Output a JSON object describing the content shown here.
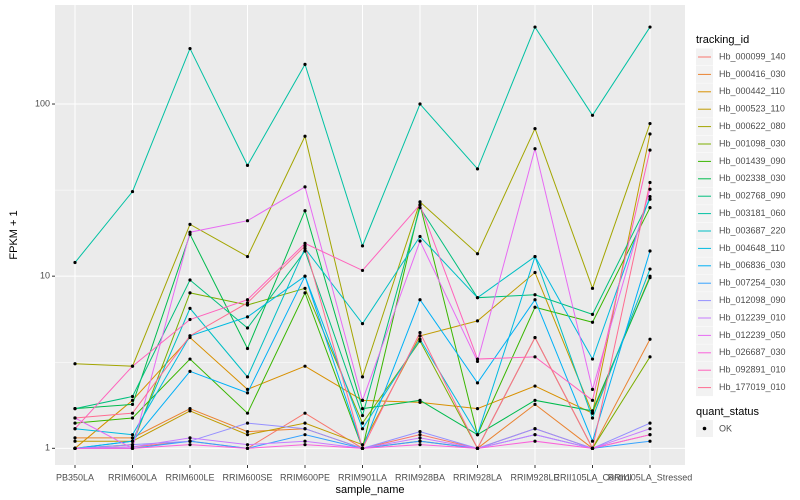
{
  "chart_data": {
    "type": "line",
    "x_label": "sample_name",
    "y_label": "FPKM + 1",
    "log_y": true,
    "grid": true,
    "ylim": [
      0.8,
      376
    ],
    "yticks": [
      1,
      10,
      100
    ],
    "legend_title": "tracking_id",
    "point_legend_title": "quant_status",
    "point_legend_label": "OK",
    "point_color": "#000000",
    "categories": [
      "PB350LA",
      "RRIM600LA",
      "RRIM600LE",
      "RRIM600SE",
      "RRIM600PE",
      "RRIM901LA",
      "RRIM928BA",
      "RRIM928LA",
      "RRIM928LE",
      "RRII105LA_Control",
      "RRII105LA_Stressed"
    ],
    "series": [
      {
        "name": "Hb_000099_140",
        "color": "#F8766D",
        "values": [
          1.0,
          1.02,
          1.1,
          1.0,
          1.6,
          1.0,
          1.2,
          1.0,
          1.3,
          1.0,
          1.2
        ]
      },
      {
        "name": "Hb_000416_030",
        "color": "#EA8331",
        "values": [
          1.15,
          1.15,
          1.7,
          1.25,
          1.3,
          1.0,
          1.1,
          1.0,
          1.8,
          1.0,
          4.3
        ]
      },
      {
        "name": "Hb_000442_110",
        "color": "#D89000",
        "values": [
          1.0,
          1.9,
          4.4,
          2.2,
          3.0,
          1.9,
          1.85,
          1.7,
          2.3,
          1.6,
          10
        ]
      },
      {
        "name": "Hb_000523_110",
        "color": "#C09B00",
        "values": [
          1.1,
          1.1,
          1.65,
          1.2,
          1.4,
          1.05,
          4.5,
          5.5,
          10.5,
          1.6,
          67
        ]
      },
      {
        "name": "Hb_000622_080",
        "color": "#A3A500",
        "values": [
          3.1,
          3.0,
          20,
          13,
          65,
          2.6,
          27,
          13.5,
          72,
          8.5,
          77
        ]
      },
      {
        "name": "Hb_001098_030",
        "color": "#7CAE00",
        "values": [
          1.0,
          1.05,
          8.0,
          6.8,
          8.5,
          1.4,
          4.2,
          1.0,
          4.4,
          1.0,
          3.4
        ]
      },
      {
        "name": "Hb_001439_090",
        "color": "#39B600",
        "values": [
          1.4,
          1.5,
          3.3,
          1.6,
          8.0,
          1.0,
          26,
          1.2,
          6.6,
          5.4,
          25
        ]
      },
      {
        "name": "Hb_002338_030",
        "color": "#00BB4E",
        "values": [
          1.7,
          1.8,
          17.5,
          3.8,
          24,
          1.7,
          1.9,
          1.2,
          1.9,
          1.65,
          9.8
        ]
      },
      {
        "name": "Hb_002768_090",
        "color": "#00BF7D",
        "values": [
          1.7,
          2.0,
          9.5,
          5.0,
          14,
          1.55,
          25,
          7.5,
          7.8,
          6.0,
          28
        ]
      },
      {
        "name": "Hb_003181_060",
        "color": "#00C1A3",
        "values": [
          12,
          31,
          210,
          44,
          170,
          15,
          100,
          42,
          280,
          86,
          280
        ]
      },
      {
        "name": "Hb_003687_220",
        "color": "#00BFC4",
        "values": [
          1.0,
          1.1,
          6.5,
          2.6,
          14.5,
          5.3,
          17,
          7.5,
          13,
          1.5,
          11
        ]
      },
      {
        "name": "Hb_004648_110",
        "color": "#00BAE0",
        "values": [
          1.3,
          1.2,
          4.5,
          5.8,
          10,
          1.3,
          4.3,
          1.2,
          13,
          3.3,
          29
        ]
      },
      {
        "name": "Hb_006836_030",
        "color": "#00B0F6",
        "values": [
          1.0,
          1.1,
          2.8,
          2.1,
          10,
          1.0,
          7.3,
          2.4,
          7.3,
          1.1,
          14
        ]
      },
      {
        "name": "Hb_007254_030",
        "color": "#35A2FF",
        "values": [
          1.0,
          1.0,
          1.1,
          1.0,
          1.2,
          1.0,
          1.1,
          1.0,
          1.2,
          1.0,
          1.1
        ]
      },
      {
        "name": "Hb_012098_090",
        "color": "#9590FF",
        "values": [
          1.0,
          1.05,
          1.1,
          1.4,
          1.3,
          1.0,
          1.25,
          1.0,
          1.3,
          1.0,
          1.4
        ]
      },
      {
        "name": "Hb_012239_010",
        "color": "#C77CFF",
        "values": [
          1.0,
          1.02,
          1.15,
          1.05,
          1.1,
          1.0,
          1.15,
          1.0,
          1.2,
          1.0,
          1.3
        ]
      },
      {
        "name": "Hb_012239_050",
        "color": "#E76BF3",
        "values": [
          1.5,
          1.0,
          18,
          21,
          33,
          1.9,
          16,
          3.2,
          55,
          2.2,
          32
        ]
      },
      {
        "name": "Hb_026687_030",
        "color": "#FA62DB",
        "values": [
          1.0,
          1.0,
          1.05,
          1.0,
          1.05,
          1.0,
          1.05,
          1.0,
          1.1,
          1.0,
          1.2
        ]
      },
      {
        "name": "Hb_092891_010",
        "color": "#FF62BC",
        "values": [
          1.3,
          3.0,
          5.6,
          7.3,
          15.5,
          10.8,
          26,
          3.3,
          3.4,
          1.9,
          54
        ]
      },
      {
        "name": "Hb_177019_010",
        "color": "#FF6C91",
        "values": [
          1.5,
          1.6,
          4.5,
          7.0,
          15,
          1.0,
          4.7,
          1.0,
          4.4,
          1.0,
          35
        ]
      }
    ]
  }
}
